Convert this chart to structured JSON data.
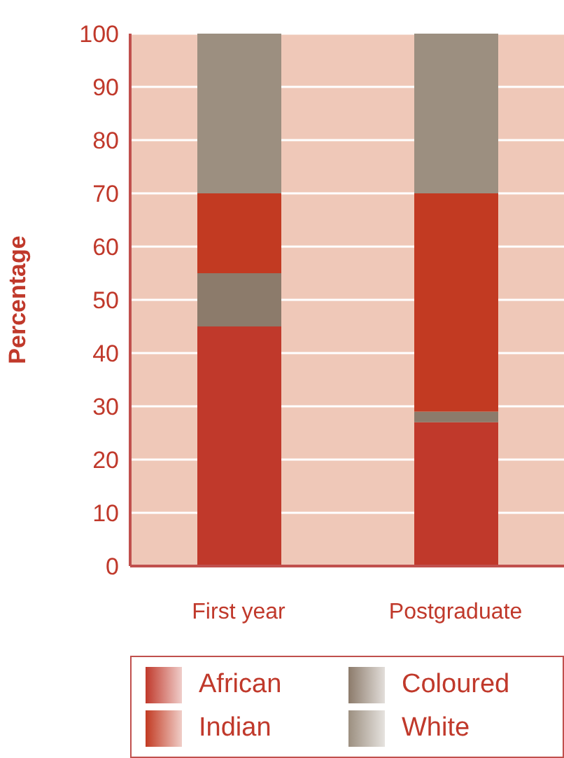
{
  "chart_data": {
    "type": "bar",
    "stacked": true,
    "ylabel": "Percentage",
    "categories": [
      "First year",
      "Postgraduate"
    ],
    "series": [
      {
        "name": "African",
        "color": "#c0392b",
        "values": [
          45,
          27
        ]
      },
      {
        "name": "Coloured",
        "color": "#8c7b6b",
        "values": [
          10,
          2
        ]
      },
      {
        "name": "Indian",
        "color": "#c23a22",
        "values": [
          15,
          41
        ]
      },
      {
        "name": "White",
        "color": "#9c8f80",
        "values": [
          30,
          30
        ]
      }
    ],
    "ylim": [
      0,
      100
    ],
    "yticks": [
      0,
      10,
      20,
      30,
      40,
      50,
      60,
      70,
      80,
      90,
      100
    ],
    "grid": "y",
    "legend": "bottom"
  }
}
